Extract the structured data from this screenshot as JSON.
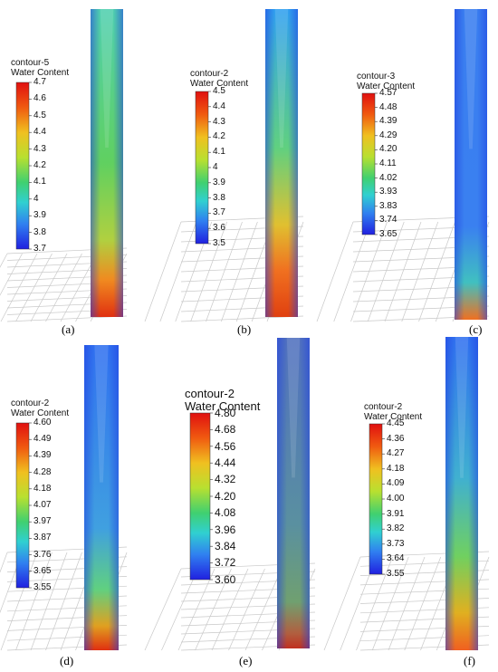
{
  "colors": {
    "scale_low": "#2030e0",
    "scale_high": "#e02010",
    "grid": "#c8c8c8"
  },
  "panels": [
    {
      "id": "a",
      "label": "(a)",
      "contour": "contour-5",
      "quantity": "Water Content",
      "ticks": [
        "4.7",
        "4.6",
        "4.5",
        "4.4",
        "4.3",
        "4.2",
        "4.1",
        "4",
        "3.9",
        "3.8",
        "3.7"
      ]
    },
    {
      "id": "b",
      "label": "(b)",
      "contour": "contour-2",
      "quantity": "Water Content",
      "ticks": [
        "4.5",
        "4.4",
        "4.3",
        "4.2",
        "4.1",
        "4",
        "3.9",
        "3.8",
        "3.7",
        "3.6",
        "3.5"
      ]
    },
    {
      "id": "c",
      "label": "(c)",
      "contour": "contour-3",
      "quantity": "Water Content",
      "ticks": [
        "4.57",
        "4.48",
        "4.39",
        "4.29",
        "4.20",
        "4.11",
        "4.02",
        "3.93",
        "3.83",
        "3.74",
        "3.65"
      ]
    },
    {
      "id": "d",
      "label": "(d)",
      "contour": "contour-2",
      "quantity": "Water Content",
      "ticks": [
        "4.60",
        "4.49",
        "4.39",
        "4.28",
        "4.18",
        "4.07",
        "3.97",
        "3.87",
        "3.76",
        "3.65",
        "3.55"
      ]
    },
    {
      "id": "e",
      "label": "(e)",
      "contour": "contour-2",
      "quantity": "Water Content",
      "ticks": [
        "4.80",
        "4.68",
        "4.56",
        "4.44",
        "4.32",
        "4.20",
        "4.08",
        "3.96",
        "3.84",
        "3.72",
        "3.60"
      ]
    },
    {
      "id": "f",
      "label": "(f)",
      "contour": "contour-2",
      "quantity": "Water Content",
      "ticks": [
        "4.45",
        "4.36",
        "4.27",
        "4.18",
        "4.09",
        "4.00",
        "3.91",
        "3.82",
        "3.73",
        "3.64",
        "3.55"
      ]
    }
  ]
}
